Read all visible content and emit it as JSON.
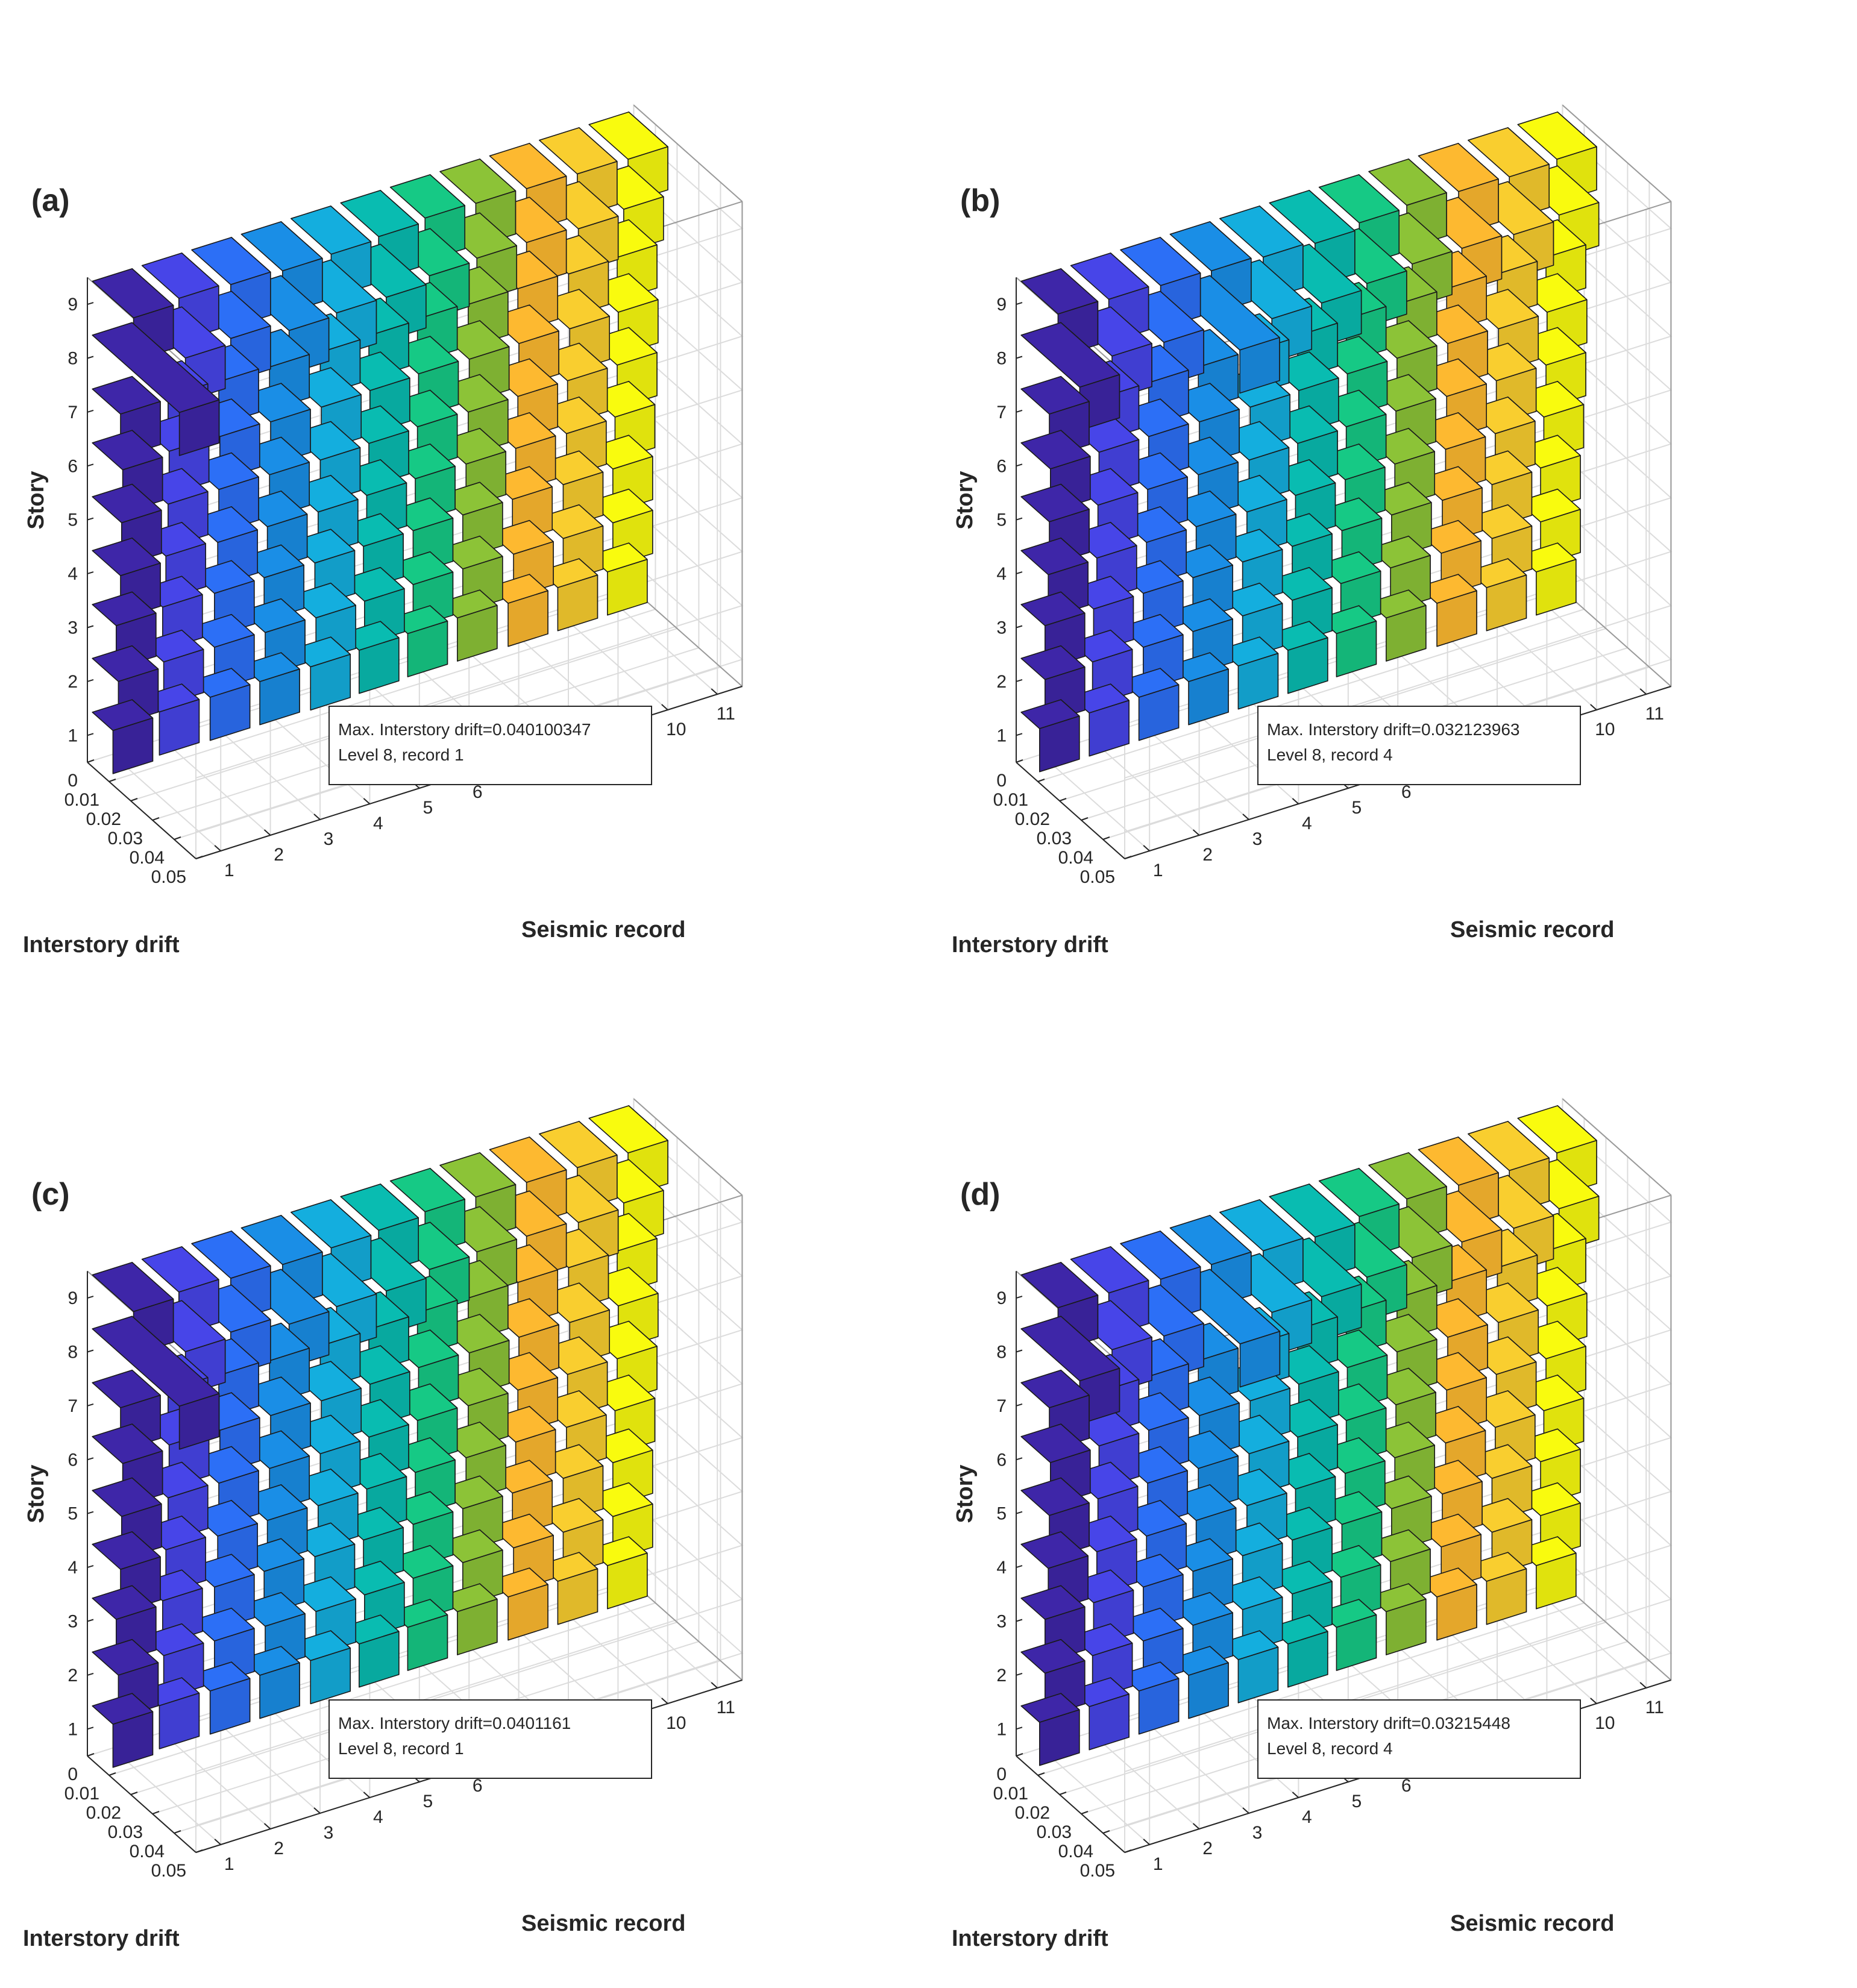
{
  "figure": {
    "panels": [
      {
        "label": "(a)",
        "annotation": {
          "line1": "Max. Interstory drift=0.040100347",
          "line2": "Level 8, record 1"
        }
      },
      {
        "label": "(b)",
        "annotation": {
          "line1": "Max. Interstory drift=0.032123963",
          "line2": "Level 8, record 4"
        }
      },
      {
        "label": "(c)",
        "annotation": {
          "line1": "Max. Interstory drift=0.0401161",
          "line2": "Level 8, record 1"
        }
      },
      {
        "label": "(d)",
        "annotation": {
          "line1": "Max. Interstory drift=0.03215448",
          "line2": "Level 8, record 4"
        }
      }
    ]
  },
  "chart_data": [
    {
      "type": "bar3",
      "panel": "(a)",
      "title": "",
      "xlabel": "Seismic record",
      "ylabel": "Interstory drift",
      "zlabel": "Story",
      "x_ticks": [
        "1",
        "2",
        "3",
        "4",
        "5",
        "6",
        "7",
        "8",
        "9",
        "10",
        "11"
      ],
      "y_ticks": [
        "0",
        "0.01",
        "0.02",
        "0.03",
        "0.04",
        "0.05"
      ],
      "z_ticks": [
        "1",
        "2",
        "3",
        "4",
        "5",
        "6",
        "7",
        "8",
        "9"
      ],
      "xlim": [
        0.5,
        11.5
      ],
      "ylim": [
        0,
        0.05
      ],
      "zlim": [
        0.5,
        9.5
      ],
      "grid": true,
      "series_colors": [
        "#3e26a8",
        "#4745e8",
        "#2c6ff6",
        "#1a8ee6",
        "#14aede",
        "#09bcb1",
        "#16c985",
        "#8cc337",
        "#fdb930",
        "#f9ce2f",
        "#f9fb0e"
      ],
      "series": [
        {
          "name": "record 1",
          "values": [
            0.0095,
            0.012,
            0.011,
            0.013,
            0.0135,
            0.014,
            0.013,
            0.0401,
            0.019,
            0.011,
            0.009
          ]
        },
        {
          "name": "record 2",
          "values": [
            0.008,
            0.01,
            0.0095,
            0.011,
            0.012,
            0.0125,
            0.012,
            0.02,
            0.017,
            0.01,
            0.008
          ]
        },
        {
          "name": "record 3",
          "values": [
            0.0085,
            0.0105,
            0.0105,
            0.012,
            0.0125,
            0.013,
            0.0125,
            0.018,
            0.018,
            0.01,
            0.008
          ]
        },
        {
          "name": "record 4",
          "values": [
            0.0085,
            0.011,
            0.0105,
            0.012,
            0.013,
            0.0135,
            0.013,
            0.022,
            0.019,
            0.0105,
            0.0085
          ]
        },
        {
          "name": "record 5",
          "values": [
            0.009,
            0.0115,
            0.011,
            0.0125,
            0.0135,
            0.014,
            0.0135,
            0.021,
            0.0185,
            0.011,
            0.009
          ]
        },
        {
          "name": "record 6",
          "values": [
            0.0085,
            0.011,
            0.0105,
            0.012,
            0.013,
            0.0135,
            0.013,
            0.021,
            0.0175,
            0.0105,
            0.0085
          ]
        },
        {
          "name": "record 7",
          "values": [
            0.008,
            0.0105,
            0.0105,
            0.0115,
            0.0125,
            0.013,
            0.0125,
            0.018,
            0.016,
            0.01,
            0.008
          ]
        },
        {
          "name": "record 8",
          "values": [
            0.008,
            0.0105,
            0.0105,
            0.012,
            0.013,
            0.0135,
            0.013,
            0.017,
            0.0165,
            0.01,
            0.008
          ]
        },
        {
          "name": "record 9",
          "values": [
            0.0085,
            0.011,
            0.0105,
            0.012,
            0.013,
            0.0135,
            0.013,
            0.017,
            0.017,
            0.0105,
            0.0085
          ]
        },
        {
          "name": "record 10",
          "values": [
            0.0085,
            0.011,
            0.011,
            0.0125,
            0.013,
            0.014,
            0.0135,
            0.018,
            0.0175,
            0.0105,
            0.0085
          ]
        },
        {
          "name": "record 11",
          "values": [
            0.0085,
            0.011,
            0.011,
            0.012,
            0.013,
            0.0135,
            0.013,
            0.016,
            0.018,
            0.0105,
            0.0085
          ]
        }
      ]
    },
    {
      "type": "bar3",
      "panel": "(b)",
      "title": "",
      "xlabel": "Seismic record",
      "ylabel": "Interstory drift",
      "zlabel": "Story",
      "x_ticks": [
        "1",
        "2",
        "3",
        "4",
        "5",
        "6",
        "7",
        "8",
        "9",
        "10",
        "11"
      ],
      "y_ticks": [
        "0",
        "0.01",
        "0.02",
        "0.03",
        "0.04",
        "0.05"
      ],
      "z_ticks": [
        "1",
        "2",
        "3",
        "4",
        "5",
        "6",
        "7",
        "8",
        "9"
      ],
      "xlim": [
        0.5,
        11.5
      ],
      "ylim": [
        0,
        0.05
      ],
      "zlim": [
        0.5,
        9.5
      ],
      "grid": true,
      "series_colors": [
        "#3e26a8",
        "#4745e8",
        "#2c6ff6",
        "#1a8ee6",
        "#14aede",
        "#09bcb1",
        "#16c985",
        "#8cc337",
        "#fdb930",
        "#f9ce2f",
        "#f9fb0e"
      ],
      "series": [
        {
          "name": "record 1",
          "values": [
            0.0085,
            0.011,
            0.011,
            0.0125,
            0.013,
            0.0135,
            0.013,
            0.027,
            0.017,
            0.0105,
            0.0085
          ]
        },
        {
          "name": "record 2",
          "values": [
            0.0085,
            0.01,
            0.0105,
            0.012,
            0.0125,
            0.013,
            0.013,
            0.019,
            0.0175,
            0.0105,
            0.0085
          ]
        },
        {
          "name": "record 3",
          "values": [
            0.0085,
            0.0105,
            0.0105,
            0.012,
            0.0125,
            0.013,
            0.013,
            0.02,
            0.0185,
            0.0105,
            0.0085
          ]
        },
        {
          "name": "record 4",
          "values": [
            0.0085,
            0.0105,
            0.0105,
            0.012,
            0.013,
            0.0135,
            0.013,
            0.0321,
            0.019,
            0.0105,
            0.0085
          ]
        },
        {
          "name": "record 5",
          "values": [
            0.0085,
            0.0105,
            0.0105,
            0.0125,
            0.0135,
            0.014,
            0.0135,
            0.024,
            0.02,
            0.011,
            0.009
          ]
        },
        {
          "name": "record 6",
          "values": [
            0.0085,
            0.0105,
            0.0105,
            0.012,
            0.013,
            0.0135,
            0.013,
            0.024,
            0.021,
            0.0105,
            0.0085
          ]
        },
        {
          "name": "record 7",
          "values": [
            0.008,
            0.01,
            0.0105,
            0.012,
            0.0125,
            0.013,
            0.0125,
            0.022,
            0.0185,
            0.0105,
            0.0085
          ]
        },
        {
          "name": "record 8",
          "values": [
            0.008,
            0.01,
            0.0105,
            0.012,
            0.0125,
            0.013,
            0.013,
            0.02,
            0.0175,
            0.0105,
            0.0085
          ]
        },
        {
          "name": "record 9",
          "values": [
            0.0085,
            0.0105,
            0.011,
            0.0125,
            0.013,
            0.0135,
            0.013,
            0.02,
            0.0185,
            0.0105,
            0.0085
          ]
        },
        {
          "name": "record 10",
          "values": [
            0.0085,
            0.011,
            0.011,
            0.0125,
            0.013,
            0.014,
            0.0135,
            0.021,
            0.019,
            0.011,
            0.009
          ]
        },
        {
          "name": "record 11",
          "values": [
            0.0085,
            0.0105,
            0.0105,
            0.012,
            0.013,
            0.0135,
            0.013,
            0.019,
            0.018,
            0.0105,
            0.0085
          ]
        }
      ]
    },
    {
      "type": "bar3",
      "panel": "(c)",
      "title": "",
      "xlabel": "Seismic record",
      "ylabel": "Interstory drift",
      "zlabel": "Story",
      "x_ticks": [
        "1",
        "2",
        "3",
        "4",
        "5",
        "6",
        "7",
        "8",
        "9",
        "10",
        "11"
      ],
      "y_ticks": [
        "0",
        "0.01",
        "0.02",
        "0.03",
        "0.04",
        "0.05"
      ],
      "z_ticks": [
        "1",
        "2",
        "3",
        "4",
        "5",
        "6",
        "7",
        "8",
        "9"
      ],
      "xlim": [
        0.5,
        11.5
      ],
      "ylim": [
        0,
        0.05
      ],
      "zlim": [
        0.5,
        9.5
      ],
      "grid": true,
      "series_colors": [
        "#3e26a8",
        "#4745e8",
        "#2c6ff6",
        "#1a8ee6",
        "#14aede",
        "#09bcb1",
        "#16c985",
        "#8cc337",
        "#fdb930",
        "#f9ce2f",
        "#f9fb0e"
      ],
      "series": [
        {
          "name": "record 1",
          "values": [
            0.0095,
            0.012,
            0.011,
            0.013,
            0.0135,
            0.014,
            0.013,
            0.0401,
            0.019,
            0.011,
            0.009
          ]
        },
        {
          "name": "record 2",
          "values": [
            0.008,
            0.01,
            0.0095,
            0.011,
            0.012,
            0.0125,
            0.012,
            0.02,
            0.017,
            0.01,
            0.008
          ]
        },
        {
          "name": "record 3",
          "values": [
            0.0085,
            0.0105,
            0.0105,
            0.012,
            0.0125,
            0.013,
            0.0125,
            0.018,
            0.018,
            0.01,
            0.008
          ]
        },
        {
          "name": "record 4",
          "values": [
            0.0085,
            0.011,
            0.0105,
            0.012,
            0.013,
            0.0135,
            0.013,
            0.022,
            0.019,
            0.0105,
            0.0085
          ]
        },
        {
          "name": "record 5",
          "values": [
            0.009,
            0.0115,
            0.011,
            0.0125,
            0.0135,
            0.014,
            0.0135,
            0.021,
            0.0185,
            0.011,
            0.009
          ]
        },
        {
          "name": "record 6",
          "values": [
            0.0085,
            0.011,
            0.0105,
            0.012,
            0.013,
            0.0135,
            0.013,
            0.021,
            0.0175,
            0.0105,
            0.0085
          ]
        },
        {
          "name": "record 7",
          "values": [
            0.008,
            0.0105,
            0.0105,
            0.0115,
            0.0125,
            0.013,
            0.0125,
            0.018,
            0.016,
            0.01,
            0.008
          ]
        },
        {
          "name": "record 8",
          "values": [
            0.008,
            0.0105,
            0.0105,
            0.012,
            0.013,
            0.0135,
            0.013,
            0.017,
            0.0165,
            0.01,
            0.008
          ]
        },
        {
          "name": "record 9",
          "values": [
            0.0085,
            0.011,
            0.0105,
            0.012,
            0.013,
            0.0135,
            0.013,
            0.017,
            0.017,
            0.0105,
            0.0085
          ]
        },
        {
          "name": "record 10",
          "values": [
            0.0085,
            0.011,
            0.011,
            0.0125,
            0.013,
            0.014,
            0.0135,
            0.018,
            0.0175,
            0.0105,
            0.0085
          ]
        },
        {
          "name": "record 11",
          "values": [
            0.0085,
            0.011,
            0.011,
            0.012,
            0.013,
            0.0135,
            0.013,
            0.016,
            0.018,
            0.0105,
            0.0085
          ]
        }
      ]
    },
    {
      "type": "bar3",
      "panel": "(d)",
      "title": "",
      "xlabel": "Seismic record",
      "ylabel": "Interstory drift",
      "zlabel": "Story",
      "x_ticks": [
        "1",
        "2",
        "3",
        "4",
        "5",
        "6",
        "7",
        "8",
        "9",
        "10",
        "11"
      ],
      "y_ticks": [
        "0",
        "0.01",
        "0.02",
        "0.03",
        "0.04",
        "0.05"
      ],
      "z_ticks": [
        "1",
        "2",
        "3",
        "4",
        "5",
        "6",
        "7",
        "8",
        "9"
      ],
      "xlim": [
        0.5,
        11.5
      ],
      "ylim": [
        0,
        0.05
      ],
      "zlim": [
        0.5,
        9.5
      ],
      "grid": true,
      "series_colors": [
        "#3e26a8",
        "#4745e8",
        "#2c6ff6",
        "#1a8ee6",
        "#14aede",
        "#09bcb1",
        "#16c985",
        "#8cc337",
        "#fdb930",
        "#f9ce2f",
        "#f9fb0e"
      ],
      "series": [
        {
          "name": "record 1",
          "values": [
            0.0085,
            0.011,
            0.011,
            0.0125,
            0.013,
            0.0135,
            0.013,
            0.027,
            0.017,
            0.0105,
            0.0085
          ]
        },
        {
          "name": "record 2",
          "values": [
            0.0085,
            0.01,
            0.0105,
            0.012,
            0.0125,
            0.013,
            0.013,
            0.019,
            0.0175,
            0.0105,
            0.0085
          ]
        },
        {
          "name": "record 3",
          "values": [
            0.0085,
            0.0105,
            0.0105,
            0.012,
            0.0125,
            0.013,
            0.013,
            0.02,
            0.0185,
            0.0105,
            0.0085
          ]
        },
        {
          "name": "record 4",
          "values": [
            0.0085,
            0.0105,
            0.0105,
            0.012,
            0.013,
            0.0135,
            0.013,
            0.0322,
            0.019,
            0.0105,
            0.0085
          ]
        },
        {
          "name": "record 5",
          "values": [
            0.0085,
            0.0105,
            0.0105,
            0.0125,
            0.0135,
            0.014,
            0.0135,
            0.024,
            0.02,
            0.011,
            0.009
          ]
        },
        {
          "name": "record 6",
          "values": [
            0.0085,
            0.0105,
            0.0105,
            0.012,
            0.013,
            0.0135,
            0.013,
            0.024,
            0.021,
            0.0105,
            0.0085
          ]
        },
        {
          "name": "record 7",
          "values": [
            0.008,
            0.01,
            0.0105,
            0.012,
            0.0125,
            0.013,
            0.0125,
            0.022,
            0.0185,
            0.0105,
            0.0085
          ]
        },
        {
          "name": "record 8",
          "values": [
            0.008,
            0.01,
            0.0105,
            0.012,
            0.0125,
            0.013,
            0.013,
            0.02,
            0.0175,
            0.0105,
            0.0085
          ]
        },
        {
          "name": "record 9",
          "values": [
            0.0085,
            0.0105,
            0.011,
            0.0125,
            0.013,
            0.0135,
            0.013,
            0.02,
            0.0185,
            0.0105,
            0.0085
          ]
        },
        {
          "name": "record 10",
          "values": [
            0.0085,
            0.011,
            0.011,
            0.0125,
            0.013,
            0.014,
            0.0135,
            0.021,
            0.019,
            0.011,
            0.009
          ]
        },
        {
          "name": "record 11",
          "values": [
            0.0085,
            0.0105,
            0.0105,
            0.012,
            0.013,
            0.0135,
            0.013,
            0.019,
            0.018,
            0.0105,
            0.0085
          ]
        }
      ]
    }
  ]
}
